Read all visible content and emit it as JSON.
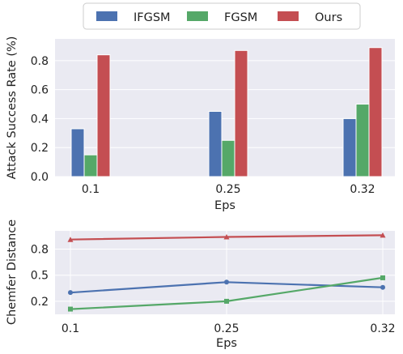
{
  "legend": {
    "items": [
      {
        "name": "IFGSM",
        "color": "#4c72b0"
      },
      {
        "name": "FGSM",
        "color": "#55a868"
      },
      {
        "name": "Ours",
        "color": "#c44e52"
      }
    ],
    "placement": "top-center"
  },
  "chart_data": [
    {
      "type": "bar",
      "categories": [
        "0.1",
        "0.25",
        "0.32"
      ],
      "series": [
        {
          "name": "IFGSM",
          "color": "#4c72b0",
          "values": [
            0.33,
            0.45,
            0.4
          ]
        },
        {
          "name": "FGSM",
          "color": "#55a868",
          "values": [
            0.15,
            0.25,
            0.5
          ]
        },
        {
          "name": "Ours",
          "color": "#c44e52",
          "values": [
            0.84,
            0.87,
            0.89
          ]
        }
      ],
      "xlabel": "Eps",
      "ylabel": "Attack Success Rate (%)",
      "ylim": [
        0,
        0.95
      ],
      "yticks": [
        "0.0",
        "0.2",
        "0.4",
        "0.6",
        "0.8"
      ],
      "grid": true
    },
    {
      "type": "line",
      "x": [
        "0.1",
        "0.25",
        "0.32"
      ],
      "series": [
        {
          "name": "IFGSM",
          "color": "#4c72b0",
          "marker": "circle",
          "values": [
            0.3,
            0.42,
            0.36
          ]
        },
        {
          "name": "FGSM",
          "color": "#55a868",
          "marker": "square",
          "values": [
            0.11,
            0.2,
            0.47
          ]
        },
        {
          "name": "Ours",
          "color": "#c44e52",
          "marker": "triangle",
          "values": [
            0.91,
            0.94,
            0.96
          ]
        }
      ],
      "xlabel": "Eps",
      "ylabel": "Chemfer Distance",
      "ylim": [
        0.05,
        1.01
      ],
      "yticks": [
        "0.2",
        "0.5",
        "0.8"
      ],
      "grid": true
    }
  ]
}
